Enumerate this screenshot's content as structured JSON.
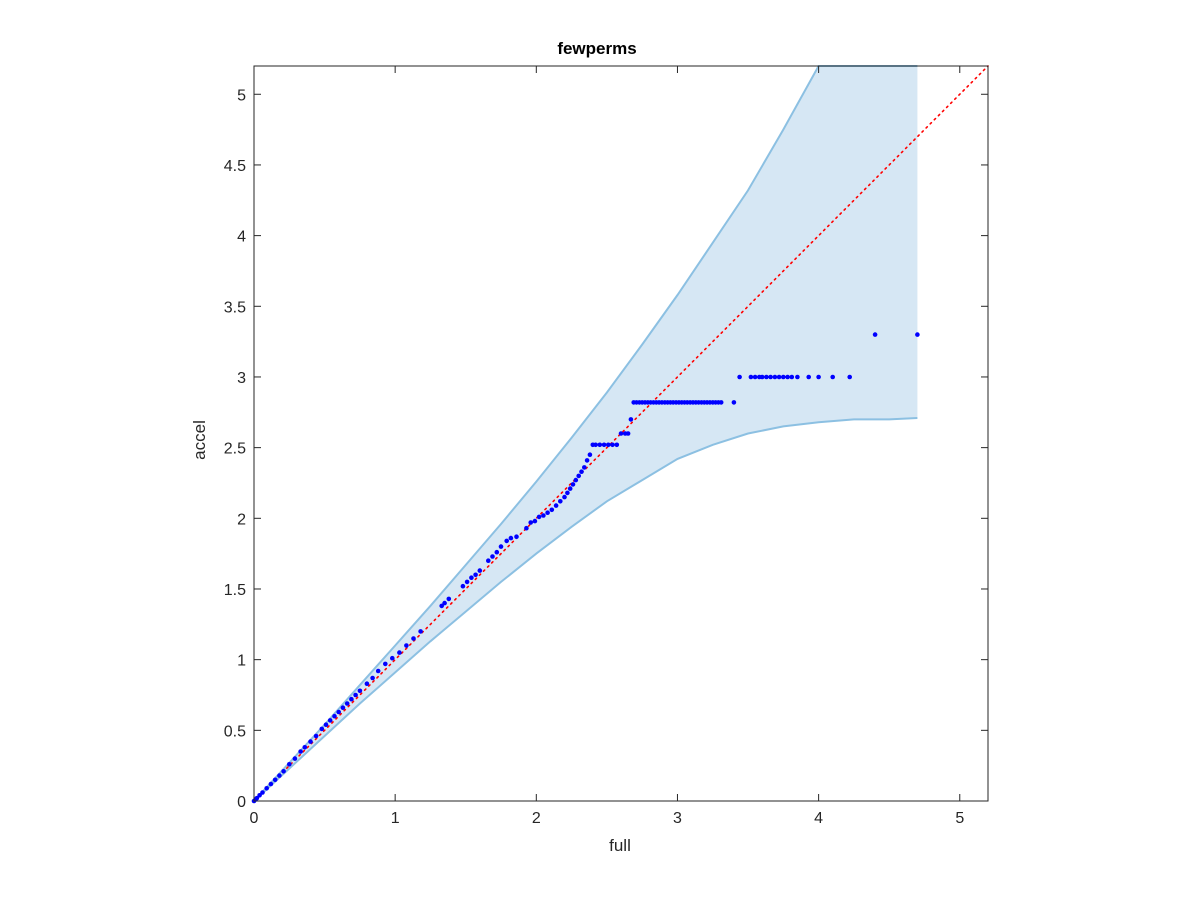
{
  "chart_data": {
    "type": "scatter",
    "title": "fewperms",
    "xlabel": "full",
    "ylabel": "accel",
    "xlim": [
      0,
      5.2
    ],
    "ylim": [
      0,
      5.2
    ],
    "xticks": [
      0,
      1,
      2,
      3,
      4,
      5
    ],
    "xtick_labels": [
      "0",
      "1",
      "2",
      "3",
      "4",
      "5"
    ],
    "yticks": [
      0,
      0.5,
      1,
      1.5,
      2,
      2.5,
      3,
      3.5,
      4,
      4.5,
      5
    ],
    "ytick_labels": [
      "0",
      "0.5",
      "1",
      "1.5",
      "2",
      "2.5",
      "3",
      "3.5",
      "4",
      "4.5",
      "5"
    ],
    "grid": false,
    "colors": {
      "points": "#0000ff",
      "reference_line": "#ff0000",
      "band_fill": "#d6e7f4",
      "band_edge": "#8cc0e2",
      "axes": "#262626"
    },
    "reference_line": {
      "style": "dotted",
      "x": [
        0,
        5.2
      ],
      "y": [
        0,
        5.2
      ]
    },
    "band": {
      "x": [
        0,
        0.25,
        0.5,
        0.75,
        1.0,
        1.25,
        1.5,
        1.75,
        2.0,
        2.25,
        2.5,
        2.75,
        3.0,
        3.25,
        3.5,
        3.75,
        4.0,
        4.25,
        4.5,
        4.7
      ],
      "upper": [
        0,
        0.27,
        0.54,
        0.82,
        1.1,
        1.38,
        1.67,
        1.96,
        2.26,
        2.57,
        2.89,
        3.23,
        3.58,
        3.95,
        4.32,
        4.75,
        5.2,
        5.2,
        5.2,
        5.2
      ],
      "lower": [
        0,
        0.23,
        0.46,
        0.69,
        0.91,
        1.13,
        1.34,
        1.55,
        1.75,
        1.94,
        2.12,
        2.27,
        2.42,
        2.52,
        2.6,
        2.65,
        2.68,
        2.7,
        2.7,
        2.71
      ]
    },
    "series": [
      {
        "x": [
          0.0,
          0.01,
          0.02,
          0.04,
          0.06,
          0.09,
          0.12,
          0.15,
          0.18,
          0.21,
          0.25,
          0.29,
          0.33,
          0.36,
          0.4,
          0.44,
          0.48,
          0.51,
          0.54,
          0.57,
          0.6,
          0.63,
          0.66,
          0.69,
          0.72,
          0.75,
          0.8,
          0.84,
          0.88,
          0.93,
          0.98,
          1.03,
          1.08,
          1.13,
          1.18,
          1.33,
          1.35,
          1.38,
          1.48,
          1.51,
          1.54,
          1.57,
          1.6,
          1.66,
          1.69,
          1.72,
          1.75,
          1.79,
          1.82,
          1.86,
          1.93,
          1.96,
          1.99,
          2.02,
          2.05,
          2.08,
          2.11,
          2.14,
          2.17,
          2.2,
          2.22,
          2.24,
          2.26,
          2.28,
          2.3,
          2.32,
          2.34,
          2.36,
          2.38,
          2.4,
          2.42,
          2.45,
          2.48,
          2.51,
          2.54,
          2.57,
          2.6,
          2.63,
          2.65,
          2.67,
          2.69,
          2.71,
          2.73,
          2.75,
          2.77,
          2.79,
          2.81,
          2.83,
          2.85,
          2.87,
          2.89,
          2.91,
          2.93,
          2.95,
          2.97,
          2.99,
          3.01,
          3.03,
          3.05,
          3.07,
          3.09,
          3.11,
          3.13,
          3.15,
          3.17,
          3.19,
          3.21,
          3.23,
          3.25,
          3.27,
          3.29,
          3.31,
          3.4,
          3.44,
          3.52,
          3.55,
          3.58,
          3.6,
          3.63,
          3.66,
          3.69,
          3.72,
          3.75,
          3.78,
          3.81,
          3.85,
          3.93,
          4.0,
          4.1,
          4.22,
          4.4,
          4.7
        ],
        "y": [
          0.0,
          0.01,
          0.02,
          0.04,
          0.06,
          0.09,
          0.12,
          0.15,
          0.18,
          0.21,
          0.26,
          0.3,
          0.35,
          0.38,
          0.42,
          0.46,
          0.51,
          0.54,
          0.57,
          0.6,
          0.63,
          0.66,
          0.69,
          0.72,
          0.75,
          0.78,
          0.83,
          0.87,
          0.92,
          0.97,
          1.01,
          1.05,
          1.1,
          1.15,
          1.2,
          1.38,
          1.4,
          1.43,
          1.52,
          1.55,
          1.58,
          1.6,
          1.63,
          1.7,
          1.73,
          1.76,
          1.8,
          1.84,
          1.86,
          1.87,
          1.93,
          1.97,
          1.98,
          2.01,
          2.02,
          2.04,
          2.06,
          2.09,
          2.12,
          2.15,
          2.18,
          2.21,
          2.24,
          2.27,
          2.3,
          2.33,
          2.36,
          2.41,
          2.45,
          2.52,
          2.52,
          2.52,
          2.52,
          2.52,
          2.52,
          2.52,
          2.6,
          2.6,
          2.6,
          2.7,
          2.82,
          2.82,
          2.82,
          2.82,
          2.82,
          2.82,
          2.82,
          2.82,
          2.82,
          2.82,
          2.82,
          2.82,
          2.82,
          2.82,
          2.82,
          2.82,
          2.82,
          2.82,
          2.82,
          2.82,
          2.82,
          2.82,
          2.82,
          2.82,
          2.82,
          2.82,
          2.82,
          2.82,
          2.82,
          2.82,
          2.82,
          2.82,
          2.82,
          3.0,
          3.0,
          3.0,
          3.0,
          3.0,
          3.0,
          3.0,
          3.0,
          3.0,
          3.0,
          3.0,
          3.0,
          3.0,
          3.0,
          3.0,
          3.0,
          3.0,
          3.3,
          3.3
        ]
      }
    ]
  }
}
